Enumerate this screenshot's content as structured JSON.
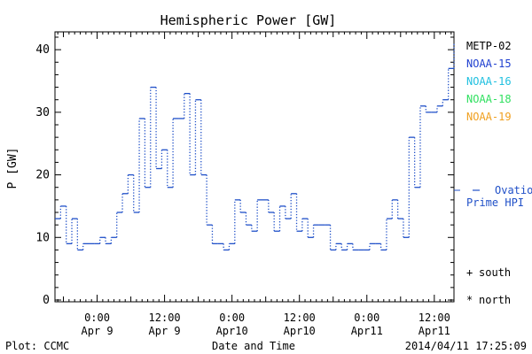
{
  "chart_data": {
    "type": "line",
    "title": "Hemispheric Power [GW]",
    "ylabel": "P [GW]",
    "xlabel": "Date and Time",
    "ylim": [
      0,
      42
    ],
    "yticks": [
      0,
      10,
      20,
      30,
      40
    ],
    "xlim": [
      "2014-04-08 16:30",
      "2014-04-11 15:30"
    ],
    "xticks": [
      {
        "t": "2014-04-09 00:00",
        "line1": "0:00",
        "line2": "Apr 9"
      },
      {
        "t": "2014-04-09 12:00",
        "line1": "12:00",
        "line2": "Apr 9"
      },
      {
        "t": "2014-04-10 00:00",
        "line1": "0:00",
        "line2": "Apr10"
      },
      {
        "t": "2014-04-10 12:00",
        "line1": "12:00",
        "line2": "Apr10"
      },
      {
        "t": "2014-04-11 00:00",
        "line1": "0:00",
        "line2": "Apr11"
      },
      {
        "t": "2014-04-11 12:00",
        "line1": "12:00",
        "line2": "Apr11"
      }
    ],
    "grid": false,
    "legend_satellites": [
      {
        "name": "METP-02",
        "color": "#000000"
      },
      {
        "name": "NOAA-15",
        "color": "#2040d0"
      },
      {
        "name": "NOAA-16",
        "color": "#20c0e0"
      },
      {
        "name": "NOAA-18",
        "color": "#30e060"
      },
      {
        "name": "NOAA-19",
        "color": "#f0a020"
      }
    ],
    "series": [
      {
        "name": "Ovation Prime HPI",
        "color": "#2050c8",
        "style": "dotted-step",
        "x": [
          "2014-04-08 16:30",
          "2014-04-08 17:30",
          "2014-04-08 18:30",
          "2014-04-08 19:30",
          "2014-04-08 20:30",
          "2014-04-08 21:30",
          "2014-04-08 22:30",
          "2014-04-08 23:30",
          "2014-04-09 00:30",
          "2014-04-09 01:30",
          "2014-04-09 02:30",
          "2014-04-09 03:30",
          "2014-04-09 04:30",
          "2014-04-09 05:30",
          "2014-04-09 06:30",
          "2014-04-09 07:30",
          "2014-04-09 08:30",
          "2014-04-09 09:30",
          "2014-04-09 10:30",
          "2014-04-09 11:30",
          "2014-04-09 12:30",
          "2014-04-09 13:30",
          "2014-04-09 14:30",
          "2014-04-09 15:30",
          "2014-04-09 16:30",
          "2014-04-09 17:30",
          "2014-04-09 18:30",
          "2014-04-09 19:30",
          "2014-04-09 20:30",
          "2014-04-09 21:30",
          "2014-04-09 22:30",
          "2014-04-09 23:30",
          "2014-04-10 00:30",
          "2014-04-10 01:30",
          "2014-04-10 02:30",
          "2014-04-10 03:30",
          "2014-04-10 04:30",
          "2014-04-10 05:30",
          "2014-04-10 06:30",
          "2014-04-10 07:30",
          "2014-04-10 08:30",
          "2014-04-10 09:30",
          "2014-04-10 10:30",
          "2014-04-10 11:30",
          "2014-04-10 12:30",
          "2014-04-10 13:30",
          "2014-04-10 14:30",
          "2014-04-10 15:30",
          "2014-04-10 16:30",
          "2014-04-10 17:30",
          "2014-04-10 18:30",
          "2014-04-10 19:30",
          "2014-04-10 20:30",
          "2014-04-10 21:30",
          "2014-04-10 22:30",
          "2014-04-10 23:30",
          "2014-04-11 00:30",
          "2014-04-11 01:30",
          "2014-04-11 02:30",
          "2014-04-11 03:30",
          "2014-04-11 04:30",
          "2014-04-11 05:30",
          "2014-04-11 06:30",
          "2014-04-11 07:30",
          "2014-04-11 08:30",
          "2014-04-11 09:30",
          "2014-04-11 10:30",
          "2014-04-11 11:30",
          "2014-04-11 12:30",
          "2014-04-11 13:30",
          "2014-04-11 14:30"
        ],
        "values": [
          13,
          15,
          9,
          13,
          8,
          9,
          9,
          9,
          10,
          9,
          10,
          14,
          17,
          20,
          14,
          29,
          18,
          34,
          21,
          24,
          18,
          29,
          29,
          33,
          20,
          32,
          20,
          12,
          9,
          9,
          8,
          9,
          16,
          14,
          12,
          11,
          16,
          16,
          14,
          11,
          15,
          13,
          17,
          11,
          13,
          10,
          12,
          12,
          12,
          8,
          9,
          8,
          9,
          8,
          8,
          8,
          9,
          9,
          8,
          13,
          16,
          13,
          10,
          26,
          18,
          31,
          30,
          30,
          31,
          32,
          37
        ],
        "end": {
          "x": "2014-04-11 15:30",
          "value": 41
        }
      }
    ],
    "series_label_line1": "Ovation",
    "series_label_line2": "Prime HPI",
    "marker_legend": [
      {
        "symbol": "+",
        "label": "south"
      },
      {
        "symbol": "*",
        "label": "north"
      }
    ]
  },
  "footer": {
    "plot_credit": "Plot: CCMC",
    "timestamp": "2014/04/11 17:25:09"
  }
}
